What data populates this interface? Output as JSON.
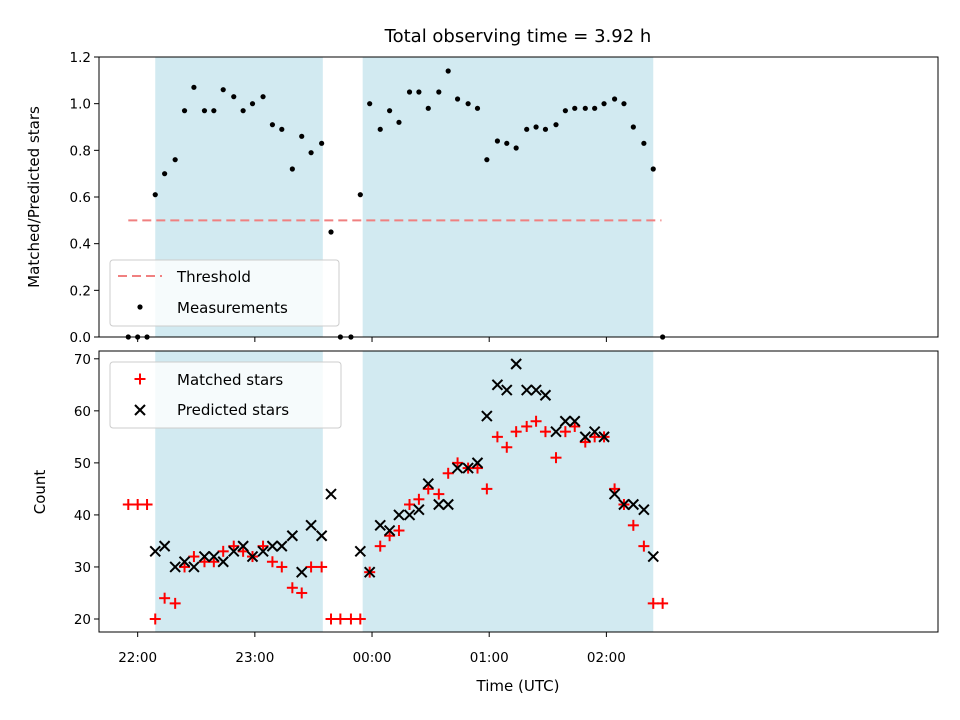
{
  "chart_data": {
    "title": "Total observing time = 3.92 h",
    "xlabel": "Time (UTC)",
    "x_tick_labels": [
      "22:00",
      "23:00",
      "00:00",
      "01:00",
      "02:00"
    ],
    "x_tick_values": [
      22.0,
      23.0,
      24.0,
      25.0,
      26.0
    ],
    "xlim": [
      21.67,
      28.83
    ],
    "shaded_intervals": [
      [
        22.15,
        23.58
      ],
      [
        23.92,
        26.4
      ]
    ],
    "shade_color": "#add8e6",
    "top": {
      "type": "scatter",
      "ylabel": "Matched/Predicted stars",
      "ylim": [
        0.0,
        1.2
      ],
      "y_ticks": [
        0.0,
        0.2,
        0.4,
        0.6,
        0.8,
        1.0,
        1.2
      ],
      "threshold": {
        "name": "Threshold",
        "value": 0.5,
        "x_range": [
          21.92,
          26.47
        ],
        "color": "#f08080"
      },
      "measurements": {
        "name": "Measurements",
        "color": "#000000",
        "points": [
          [
            21.92,
            0.0
          ],
          [
            22.0,
            0.0
          ],
          [
            22.08,
            0.0
          ],
          [
            22.15,
            0.61
          ],
          [
            22.23,
            0.7
          ],
          [
            22.32,
            0.76
          ],
          [
            22.4,
            0.97
          ],
          [
            22.48,
            1.07
          ],
          [
            22.57,
            0.97
          ],
          [
            22.65,
            0.97
          ],
          [
            22.73,
            1.06
          ],
          [
            22.82,
            1.03
          ],
          [
            22.9,
            0.97
          ],
          [
            22.98,
            1.0
          ],
          [
            23.07,
            1.03
          ],
          [
            23.15,
            0.91
          ],
          [
            23.23,
            0.89
          ],
          [
            23.32,
            0.72
          ],
          [
            23.4,
            0.86
          ],
          [
            23.48,
            0.79
          ],
          [
            23.57,
            0.83
          ],
          [
            23.65,
            0.45
          ],
          [
            23.73,
            0.0
          ],
          [
            23.82,
            0.0
          ],
          [
            23.9,
            0.61
          ],
          [
            23.98,
            1.0
          ],
          [
            24.07,
            0.89
          ],
          [
            24.15,
            0.97
          ],
          [
            24.23,
            0.92
          ],
          [
            24.32,
            1.05
          ],
          [
            24.4,
            1.05
          ],
          [
            24.48,
            0.98
          ],
          [
            24.57,
            1.05
          ],
          [
            24.65,
            1.14
          ],
          [
            24.73,
            1.02
          ],
          [
            24.82,
            1.0
          ],
          [
            24.9,
            0.98
          ],
          [
            24.98,
            0.76
          ],
          [
            25.07,
            0.84
          ],
          [
            25.15,
            0.83
          ],
          [
            25.23,
            0.81
          ],
          [
            25.32,
            0.89
          ],
          [
            25.4,
            0.9
          ],
          [
            25.48,
            0.89
          ],
          [
            25.57,
            0.91
          ],
          [
            25.65,
            0.97
          ],
          [
            25.73,
            0.98
          ],
          [
            25.82,
            0.98
          ],
          [
            25.9,
            0.98
          ],
          [
            25.98,
            1.0
          ],
          [
            26.07,
            1.02
          ],
          [
            26.15,
            1.0
          ],
          [
            26.23,
            0.9
          ],
          [
            26.32,
            0.83
          ],
          [
            26.4,
            0.72
          ],
          [
            26.48,
            0.0
          ]
        ]
      },
      "legend": {
        "position": "lower left",
        "entries": [
          "Threshold",
          "Measurements"
        ]
      }
    },
    "bottom": {
      "type": "scatter",
      "ylabel": "Count",
      "ylim": [
        17.5,
        71.5
      ],
      "y_ticks": [
        20,
        30,
        40,
        50,
        60,
        70
      ],
      "series": [
        {
          "name": "Matched stars",
          "marker": "+",
          "color": "#ff0000",
          "points": [
            [
              21.92,
              42
            ],
            [
              22.0,
              42
            ],
            [
              22.08,
              42
            ],
            [
              22.15,
              20
            ],
            [
              22.23,
              24
            ],
            [
              22.32,
              23
            ],
            [
              22.4,
              30
            ],
            [
              22.48,
              32
            ],
            [
              22.57,
              31
            ],
            [
              22.65,
              31
            ],
            [
              22.73,
              33
            ],
            [
              22.82,
              34
            ],
            [
              22.9,
              33
            ],
            [
              22.98,
              32
            ],
            [
              23.07,
              34
            ],
            [
              23.15,
              31
            ],
            [
              23.23,
              30
            ],
            [
              23.32,
              26
            ],
            [
              23.4,
              25
            ],
            [
              23.48,
              30
            ],
            [
              23.57,
              30
            ],
            [
              23.65,
              20
            ],
            [
              23.73,
              20
            ],
            [
              23.82,
              20
            ],
            [
              23.9,
              20
            ],
            [
              23.98,
              29
            ],
            [
              24.07,
              34
            ],
            [
              24.15,
              36
            ],
            [
              24.23,
              37
            ],
            [
              24.32,
              42
            ],
            [
              24.4,
              43
            ],
            [
              24.48,
              45
            ],
            [
              24.57,
              44
            ],
            [
              24.65,
              48
            ],
            [
              24.73,
              50
            ],
            [
              24.82,
              49
            ],
            [
              24.9,
              49
            ],
            [
              24.98,
              45
            ],
            [
              25.07,
              55
            ],
            [
              25.15,
              53
            ],
            [
              25.23,
              56
            ],
            [
              25.32,
              57
            ],
            [
              25.4,
              58
            ],
            [
              25.48,
              56
            ],
            [
              25.57,
              51
            ],
            [
              25.65,
              56
            ],
            [
              25.73,
              57
            ],
            [
              25.82,
              54
            ],
            [
              25.9,
              55
            ],
            [
              25.98,
              55
            ],
            [
              26.07,
              45
            ],
            [
              26.15,
              42
            ],
            [
              26.23,
              38
            ],
            [
              26.32,
              34
            ],
            [
              26.4,
              23
            ],
            [
              26.48,
              23
            ]
          ]
        },
        {
          "name": "Predicted stars",
          "marker": "x",
          "color": "#000000",
          "points": [
            [
              22.15,
              33
            ],
            [
              22.23,
              34
            ],
            [
              22.32,
              30
            ],
            [
              22.4,
              31
            ],
            [
              22.48,
              30
            ],
            [
              22.57,
              32
            ],
            [
              22.65,
              32
            ],
            [
              22.73,
              31
            ],
            [
              22.82,
              33
            ],
            [
              22.9,
              34
            ],
            [
              22.98,
              32
            ],
            [
              23.07,
              33
            ],
            [
              23.15,
              34
            ],
            [
              23.23,
              34
            ],
            [
              23.32,
              36
            ],
            [
              23.4,
              29
            ],
            [
              23.48,
              38
            ],
            [
              23.57,
              36
            ],
            [
              23.65,
              44
            ],
            [
              23.9,
              33
            ],
            [
              23.98,
              29
            ],
            [
              24.07,
              38
            ],
            [
              24.15,
              37
            ],
            [
              24.23,
              40
            ],
            [
              24.32,
              40
            ],
            [
              24.4,
              41
            ],
            [
              24.48,
              46
            ],
            [
              24.57,
              42
            ],
            [
              24.65,
              42
            ],
            [
              24.73,
              49
            ],
            [
              24.82,
              49
            ],
            [
              24.9,
              50
            ],
            [
              24.98,
              59
            ],
            [
              25.07,
              65
            ],
            [
              25.15,
              64
            ],
            [
              25.23,
              69
            ],
            [
              25.32,
              64
            ],
            [
              25.4,
              64
            ],
            [
              25.48,
              63
            ],
            [
              25.57,
              56
            ],
            [
              25.65,
              58
            ],
            [
              25.73,
              58
            ],
            [
              25.82,
              55
            ],
            [
              25.9,
              56
            ],
            [
              25.98,
              55
            ],
            [
              26.07,
              44
            ],
            [
              26.15,
              42
            ],
            [
              26.23,
              42
            ],
            [
              26.32,
              41
            ],
            [
              26.4,
              32
            ]
          ]
        }
      ],
      "legend": {
        "position": "upper left",
        "entries": [
          "Matched stars",
          "Predicted stars"
        ]
      }
    }
  }
}
